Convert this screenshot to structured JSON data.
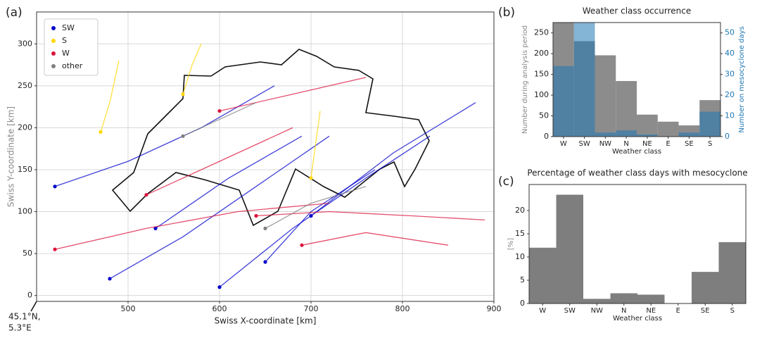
{
  "chart_data": [
    {
      "type": "line",
      "panel": "(a)",
      "xlabel": "Swiss X-coordinate [km]",
      "ylabel": "Swiss Y-coordinate [km]",
      "annotations": [
        "45.1°N,",
        "5.3°E"
      ],
      "xlim": [
        400,
        900
      ],
      "ylim": [
        -7,
        338
      ],
      "xticks": [
        500,
        600,
        700,
        800,
        900
      ],
      "yticks": [
        0,
        50,
        100,
        150,
        200,
        250,
        300
      ],
      "grid": true,
      "legend": "upper left",
      "series": [
        {
          "name": "SW",
          "color": "#0000cc",
          "tracks": [
            {
              "x": [
                480,
                560,
                640,
                720
              ],
              "y": [
                20,
                70,
                130,
                190
              ]
            },
            {
              "x": [
                600,
                680,
                760,
                830
              ],
              "y": [
                10,
                80,
                140,
                190
              ]
            },
            {
              "x": [
                420,
                500,
                580,
                660
              ],
              "y": [
                130,
                160,
                200,
                250
              ]
            },
            {
              "x": [
                650,
                700,
                770
              ],
              "y": [
                40,
                100,
                150
              ]
            },
            {
              "x": [
                530,
                610,
                690
              ],
              "y": [
                80,
                140,
                190
              ]
            },
            {
              "x": [
                700,
                790,
                880
              ],
              "y": [
                95,
                170,
                230
              ]
            }
          ]
        },
        {
          "name": "S",
          "color": "#ffd700",
          "tracks": [
            {
              "x": [
                470,
                480,
                490
              ],
              "y": [
                195,
                230,
                280
              ]
            },
            {
              "x": [
                700,
                705,
                710
              ],
              "y": [
                140,
                180,
                220
              ]
            },
            {
              "x": [
                560,
                570,
                580
              ],
              "y": [
                240,
                275,
                300
              ]
            }
          ]
        },
        {
          "name": "W",
          "color": "#dc143c",
          "tracks": [
            {
              "x": [
                420,
                520,
                620,
                720
              ],
              "y": [
                55,
                80,
                100,
                110
              ]
            },
            {
              "x": [
                600,
                680,
                760
              ],
              "y": [
                220,
                240,
                260
              ]
            },
            {
              "x": [
                640,
                720,
                810,
                890
              ],
              "y": [
                95,
                100,
                95,
                90
              ]
            },
            {
              "x": [
                520,
                600,
                680
              ],
              "y": [
                120,
                160,
                200
              ]
            },
            {
              "x": [
                690,
                760,
                850
              ],
              "y": [
                60,
                75,
                60
              ]
            }
          ]
        },
        {
          "name": "other",
          "color": "#808080",
          "tracks": [
            {
              "x": [
                650,
                700,
                760
              ],
              "y": [
                80,
                110,
                130
              ]
            },
            {
              "x": [
                560,
                640
              ],
              "y": [
                190,
                230
              ]
            }
          ]
        }
      ]
    },
    {
      "type": "bar",
      "panel": "(b)",
      "title": "Weather class occurrence",
      "xlabel": "Weather class",
      "ylabel": "Number during analysis period",
      "y2label": "Number on mesocyclone days",
      "categories": [
        "W",
        "SW",
        "NW",
        "N",
        "NE",
        "E",
        "SE",
        "S"
      ],
      "ylim": [
        0,
        275
      ],
      "yticks": [
        0,
        50,
        100,
        150,
        200,
        250
      ],
      "y2lim": [
        0,
        55
      ],
      "y2ticks": [
        0,
        10,
        20,
        30,
        40,
        50
      ],
      "series": [
        {
          "color": "#808080",
          "values": [
            275,
            230,
            196,
            134,
            53,
            36,
            27,
            88
          ]
        },
        {
          "color": "#1f77b4",
          "axis": "y2",
          "values": [
            34,
            55,
            2,
            3,
            1,
            0,
            2,
            12
          ]
        }
      ]
    },
    {
      "type": "bar",
      "panel": "(c)",
      "title": "Percentage of weather class days with mesocyclone",
      "xlabel": "Weather class",
      "ylabel": "[%]",
      "categories": [
        "W",
        "SW",
        "NW",
        "N",
        "NE",
        "E",
        "SE",
        "S"
      ],
      "ylim": [
        0,
        25.6
      ],
      "yticks": [
        0,
        5,
        10,
        15,
        20
      ],
      "series": [
        {
          "color": "#707070",
          "values": [
            12,
            23.4,
            1,
            2.2,
            1.9,
            0,
            6.8,
            13.2
          ]
        }
      ]
    }
  ]
}
